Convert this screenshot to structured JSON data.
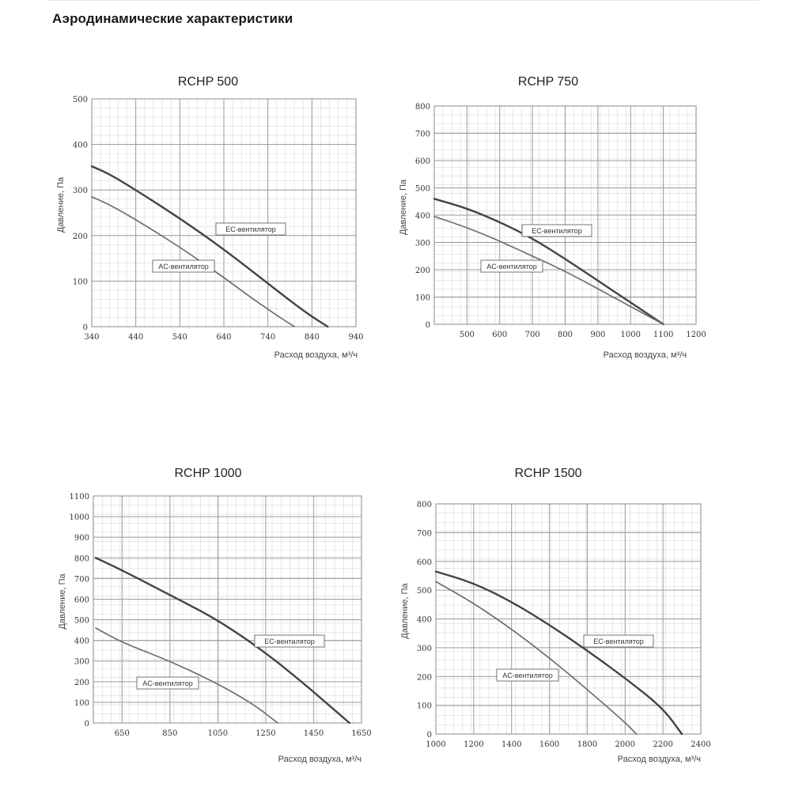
{
  "page": {
    "title": "Аэродинамические характеристики"
  },
  "chart_data": [
    {
      "type": "line",
      "title": "RCHP 500",
      "xlabel": "Расход воздуха, м³/ч",
      "ylabel": "Давление, Па",
      "xlim": [
        340,
        940
      ],
      "ylim": [
        0,
        500
      ],
      "xticks": [
        340,
        440,
        540,
        640,
        740,
        840,
        940
      ],
      "xtick_labels": [
        "340",
        "440",
        "540",
        "640",
        "740",
        "840",
        "940"
      ],
      "yticks": [
        0,
        100,
        200,
        300,
        400,
        500
      ],
      "grid": true,
      "series": [
        {
          "name": "EC-вентилятор",
          "x": [
            340,
            380,
            440,
            540,
            640,
            740,
            800,
            840,
            876
          ],
          "y": [
            352,
            335,
            300,
            238,
            170,
            95,
            50,
            22,
            0
          ]
        },
        {
          "name": "AC-вентилятор",
          "x": [
            340,
            380,
            440,
            540,
            640,
            700,
            760,
            800
          ],
          "y": [
            285,
            268,
            235,
            175,
            108,
            65,
            25,
            0
          ]
        }
      ]
    },
    {
      "type": "line",
      "title": "RCHP 750",
      "xlabel": "Расход воздуха, м³/ч",
      "ylabel": "Давление, Па",
      "xlim": [
        400,
        1200
      ],
      "ylim": [
        0,
        800
      ],
      "xticks": [
        500,
        600,
        700,
        800,
        900,
        1000,
        1100,
        1200
      ],
      "xtick_labels": [
        "500",
        "600",
        "700",
        "800",
        "900",
        "1000",
        "1100",
        "1200"
      ],
      "yticks": [
        0,
        100,
        200,
        300,
        400,
        500,
        600,
        700,
        800
      ],
      "grid": true,
      "series": [
        {
          "name": "EC-вентилятор",
          "x": [
            400,
            500,
            600,
            700,
            800,
            900,
            1000,
            1100
          ],
          "y": [
            460,
            425,
            375,
            315,
            240,
            160,
            80,
            0
          ]
        },
        {
          "name": "AC-вентилятор",
          "x": [
            400,
            500,
            600,
            700,
            800,
            900,
            1000,
            1100
          ],
          "y": [
            395,
            355,
            305,
            250,
            195,
            130,
            65,
            0
          ]
        }
      ]
    },
    {
      "type": "line",
      "title": "RCHP 1000",
      "xlabel": "Расход воздуха, м³/ч",
      "ylabel": "Давление, Па",
      "xlim": [
        530,
        1650
      ],
      "ylim": [
        0,
        1100
      ],
      "xticks": [
        650,
        850,
        1050,
        1250,
        1450,
        1650
      ],
      "xtick_labels": [
        "650",
        "850",
        "1050",
        "1250",
        "1450",
        "1650"
      ],
      "yticks": [
        0,
        100,
        200,
        300,
        400,
        500,
        600,
        700,
        800,
        900,
        1000,
        1100
      ],
      "grid": true,
      "series": [
        {
          "name": "EC-вентилятор",
          "x": [
            540,
            650,
            850,
            1050,
            1250,
            1400,
            1500,
            1600
          ],
          "y": [
            800,
            740,
            620,
            500,
            340,
            200,
            100,
            0
          ]
        },
        {
          "name": "AC-вентилятор",
          "x": [
            540,
            650,
            850,
            1050,
            1200,
            1300
          ],
          "y": [
            460,
            390,
            300,
            190,
            90,
            0
          ]
        }
      ]
    },
    {
      "type": "line",
      "title": "RCHP 1500",
      "xlabel": "Расход воздуха, м³/ч",
      "ylabel": "Давление, Па",
      "xlim": [
        1000,
        2400
      ],
      "ylim": [
        0,
        800
      ],
      "xticks": [
        1000,
        1200,
        1400,
        1600,
        1800,
        2000,
        2200,
        2400
      ],
      "xtick_labels": [
        "1000",
        "1200",
        "1400",
        "1600",
        "1800",
        "2000",
        "2200",
        "2400"
      ],
      "yticks": [
        0,
        100,
        200,
        300,
        400,
        500,
        600,
        700,
        800
      ],
      "grid": true,
      "series": [
        {
          "name": "EC-вентилятор",
          "x": [
            1000,
            1200,
            1400,
            1600,
            1800,
            2000,
            2200,
            2300
          ],
          "y": [
            565,
            525,
            460,
            380,
            290,
            195,
            90,
            0
          ]
        },
        {
          "name": "AC-вентилятор",
          "x": [
            1000,
            1200,
            1400,
            1600,
            1800,
            2000,
            2060
          ],
          "y": [
            530,
            455,
            365,
            265,
            155,
            40,
            0
          ]
        }
      ]
    }
  ]
}
